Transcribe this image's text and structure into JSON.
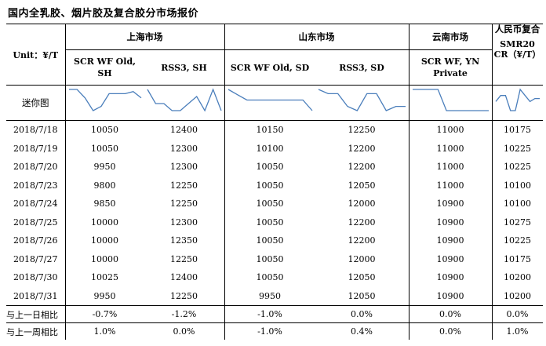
{
  "title": "国内全乳胶、烟片胶及复合胶分市场报价",
  "unit_label": "Unit：¥/T",
  "sparkline_label": "迷你图",
  "markets": [
    {
      "name": "上海市场"
    },
    {
      "name": "山东市场"
    },
    {
      "name": "云南市场"
    },
    {
      "name": "人民币复合"
    }
  ],
  "products": [
    "SCR WF Old, SH",
    "RSS3, SH",
    "SCR WF Old, SD",
    "RSS3, SD",
    "SCR WF, YN Private",
    "SMR20 CR（¥/T）"
  ],
  "rows": [
    {
      "date": "2018/7/18",
      "values": [
        "10050",
        "12400",
        "10150",
        "12250",
        "11000",
        "10175"
      ]
    },
    {
      "date": "2018/7/19",
      "values": [
        "10050",
        "12300",
        "10100",
        "12200",
        "11000",
        "10225"
      ]
    },
    {
      "date": "2018/7/20",
      "values": [
        "9950",
        "12300",
        "10050",
        "12200",
        "11000",
        "10225"
      ]
    },
    {
      "date": "2018/7/23",
      "values": [
        "9800",
        "12250",
        "10050",
        "12050",
        "11000",
        "10100"
      ]
    },
    {
      "date": "2018/7/24",
      "values": [
        "9850",
        "12250",
        "10050",
        "12000",
        "10900",
        "10100"
      ]
    },
    {
      "date": "2018/7/25",
      "values": [
        "10000",
        "12300",
        "10050",
        "12200",
        "10900",
        "10275"
      ]
    },
    {
      "date": "2018/7/26",
      "values": [
        "10000",
        "12350",
        "10050",
        "12200",
        "10900",
        "10225"
      ]
    },
    {
      "date": "2018/7/27",
      "values": [
        "10000",
        "12250",
        "10050",
        "12000",
        "10900",
        "10175"
      ]
    },
    {
      "date": "2018/7/30",
      "values": [
        "10025",
        "12400",
        "10050",
        "12050",
        "10900",
        "10200"
      ]
    },
    {
      "date": "2018/7/31",
      "values": [
        "9950",
        "12250",
        "9950",
        "12050",
        "10900",
        "10200"
      ]
    }
  ],
  "changes": [
    {
      "label": "与上一日相比",
      "values": [
        "-0.7%",
        "-1.2%",
        "-1.0%",
        "0.0%",
        "0.0%",
        "0.0%"
      ]
    },
    {
      "label": "与上一周相比",
      "values": [
        "1.0%",
        "0.0%",
        "-1.0%",
        "0.4%",
        "0.0%",
        "1.0%"
      ]
    }
  ],
  "colors": {
    "sparkline": "#4a7ebb",
    "border": "#000000"
  }
}
